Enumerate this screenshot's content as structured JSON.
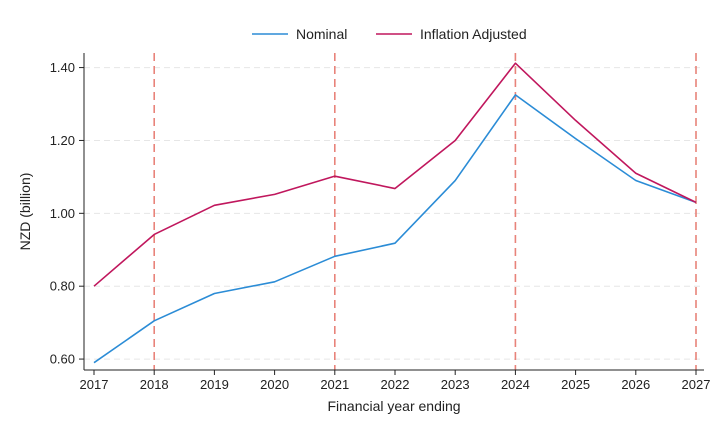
{
  "chart_data": {
    "type": "line",
    "xlabel": "Financial year ending",
    "ylabel": "NZD (billion)",
    "x": [
      2017,
      2018,
      2019,
      2020,
      2021,
      2022,
      2023,
      2024,
      2025,
      2026,
      2027
    ],
    "ylim": [
      0.57,
      1.44
    ],
    "yticks": [
      0.6,
      0.8,
      1.0,
      1.2,
      1.4
    ],
    "ytick_labels": [
      "0.60",
      "0.80",
      "1.00",
      "1.20",
      "1.40"
    ],
    "xtick_labels": [
      "2017",
      "2018",
      "2019",
      "2020",
      "2021",
      "2022",
      "2023",
      "2024",
      "2025",
      "2026",
      "2027"
    ],
    "grid": "horizontal dashed",
    "legend_position": "top",
    "series": [
      {
        "name": "Nominal",
        "color": "#2b8cd6",
        "values": [
          0.59,
          0.705,
          0.78,
          0.812,
          0.882,
          0.918,
          1.09,
          1.325,
          1.205,
          1.09,
          1.03
        ]
      },
      {
        "name": "Inflation Adjusted",
        "color": "#c0175d",
        "values": [
          0.8,
          0.942,
          1.022,
          1.052,
          1.102,
          1.068,
          1.2,
          1.412,
          1.255,
          1.11,
          1.03
        ]
      }
    ],
    "vertical_reference_lines": {
      "x": [
        2018,
        2021,
        2024,
        2027
      ],
      "color": "#e8837a",
      "style": "dashed"
    }
  }
}
